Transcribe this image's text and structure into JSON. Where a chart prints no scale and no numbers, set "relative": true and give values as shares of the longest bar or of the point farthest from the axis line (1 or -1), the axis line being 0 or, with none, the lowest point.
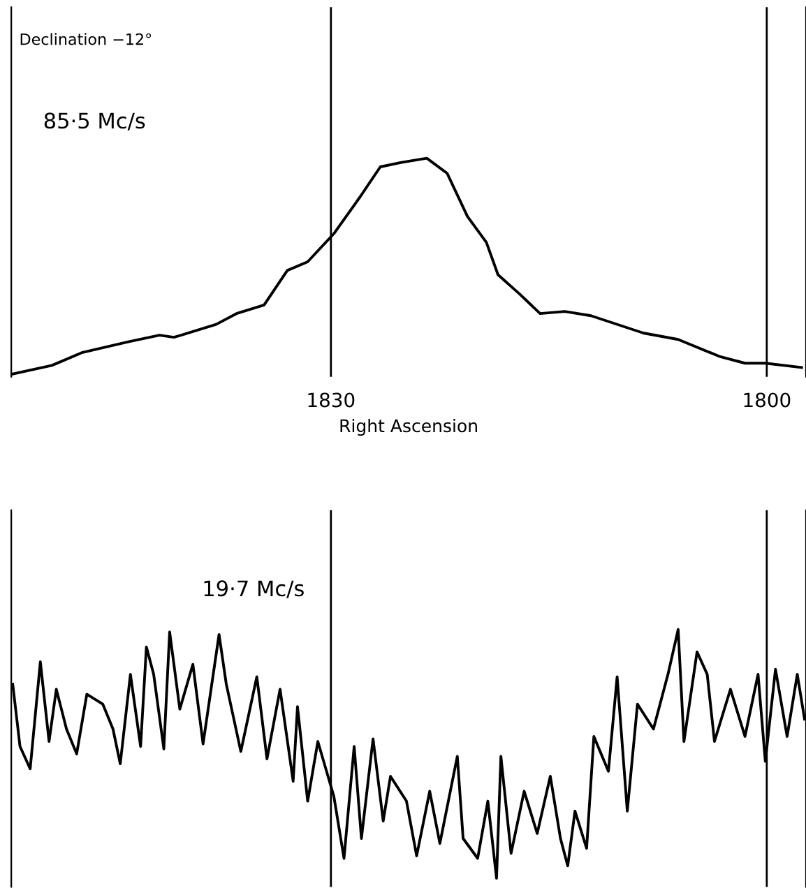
{
  "chart_data": [
    {
      "type": "line",
      "relative": true,
      "xlim": [
        1852,
        1797.3
      ],
      "xticks": [
        1830,
        1800
      ],
      "xlabel": "Right Ascension",
      "annotations": [
        "Declination −12°"
      ],
      "ref_lines": [
        {
          "axis": "x",
          "value": 1830,
          "label": null,
          "color": "#000000"
        },
        {
          "axis": "x",
          "value": 1800,
          "label": null,
          "color": "#000000"
        }
      ],
      "series": [
        {
          "name": "85·5 Mc/s",
          "color": "#000000",
          "x": [
            1851.9,
            1849.2,
            1847.1,
            1843.9,
            1841.8,
            1840.8,
            1837.9,
            1836.5,
            1834.6,
            1833.0,
            1831.6,
            1829.8,
            1828.0,
            1826.6,
            1825.2,
            1823.4,
            1822.0,
            1820.6,
            1819.3,
            1818.5,
            1817.0,
            1815.6,
            1813.9,
            1812.1,
            1808.5,
            1806.1,
            1803.2,
            1801.5,
            1800.1,
            1797.6
          ],
          "values": [
            0,
            0.04,
            0.1,
            0.15,
            0.18,
            0.17,
            0.23,
            0.28,
            0.32,
            0.48,
            0.52,
            0.65,
            0.82,
            0.96,
            0.98,
            1,
            0.93,
            0.73,
            0.61,
            0.46,
            0.37,
            0.28,
            0.29,
            0.27,
            0.19,
            0.16,
            0.08,
            0.05,
            0.05,
            0.03
          ]
        }
      ]
    },
    {
      "type": "line",
      "relative": true,
      "xlim": [
        1852,
        1797.3
      ],
      "ref_lines": [
        {
          "axis": "x",
          "value": 1830,
          "label": null,
          "color": "#000000"
        },
        {
          "axis": "x",
          "value": 1800,
          "label": null,
          "color": "#000000"
        }
      ],
      "series": [
        {
          "name": "19·7 Mc/s",
          "color": "#000000",
          "x": [
            1851.9,
            1851.4,
            1850.7,
            1850.0,
            1849.4,
            1848.9,
            1848.2,
            1847.5,
            1846.8,
            1845.7,
            1845.0,
            1844.5,
            1843.8,
            1843.1,
            1842.7,
            1842.2,
            1841.5,
            1841.1,
            1840.4,
            1839.5,
            1838.8,
            1837.7,
            1837.2,
            1836.2,
            1835.1,
            1834.4,
            1833.5,
            1832.6,
            1832.3,
            1831.6,
            1830.9,
            1829.8,
            1829.1,
            1828.4,
            1827.9,
            1827.1,
            1826.4,
            1825.9,
            1824.8,
            1824.1,
            1823.2,
            1822.5,
            1821.3,
            1820.9,
            1819.9,
            1819.2,
            1818.6,
            1818.3,
            1817.6,
            1816.7,
            1815.8,
            1814.9,
            1814.2,
            1813.7,
            1813.2,
            1812.4,
            1811.9,
            1810.9,
            1810.3,
            1809.6,
            1808.9,
            1807.8,
            1806.8,
            1806.1,
            1805.7,
            1804.8,
            1804.1,
            1803.6,
            1802.5,
            1801.5,
            1800.6,
            1800.1,
            1799.4,
            1798.6,
            1797.9,
            1797.4
          ],
          "values": [
            0.78,
            0.53,
            0.44,
            0.87,
            0.55,
            0.76,
            0.6,
            0.5,
            0.74,
            0.7,
            0.6,
            0.46,
            0.82,
            0.53,
            0.93,
            0.82,
            0.52,
            0.99,
            0.68,
            0.86,
            0.54,
            0.98,
            0.78,
            0.51,
            0.81,
            0.48,
            0.76,
            0.39,
            0.69,
            0.31,
            0.55,
            0.33,
            0.08,
            0.53,
            0.16,
            0.56,
            0.23,
            0.41,
            0.31,
            0.09,
            0.35,
            0.14,
            0.49,
            0.16,
            0.08,
            0.31,
            0,
            0.49,
            0.1,
            0.35,
            0.18,
            0.41,
            0.16,
            0.05,
            0.27,
            0.12,
            0.57,
            0.43,
            0.81,
            0.27,
            0.7,
            0.6,
            0.82,
            1,
            0.55,
            0.91,
            0.82,
            0.55,
            0.76,
            0.57,
            0.82,
            0.47,
            0.84,
            0.57,
            0.82,
            0.64
          ]
        }
      ]
    }
  ]
}
